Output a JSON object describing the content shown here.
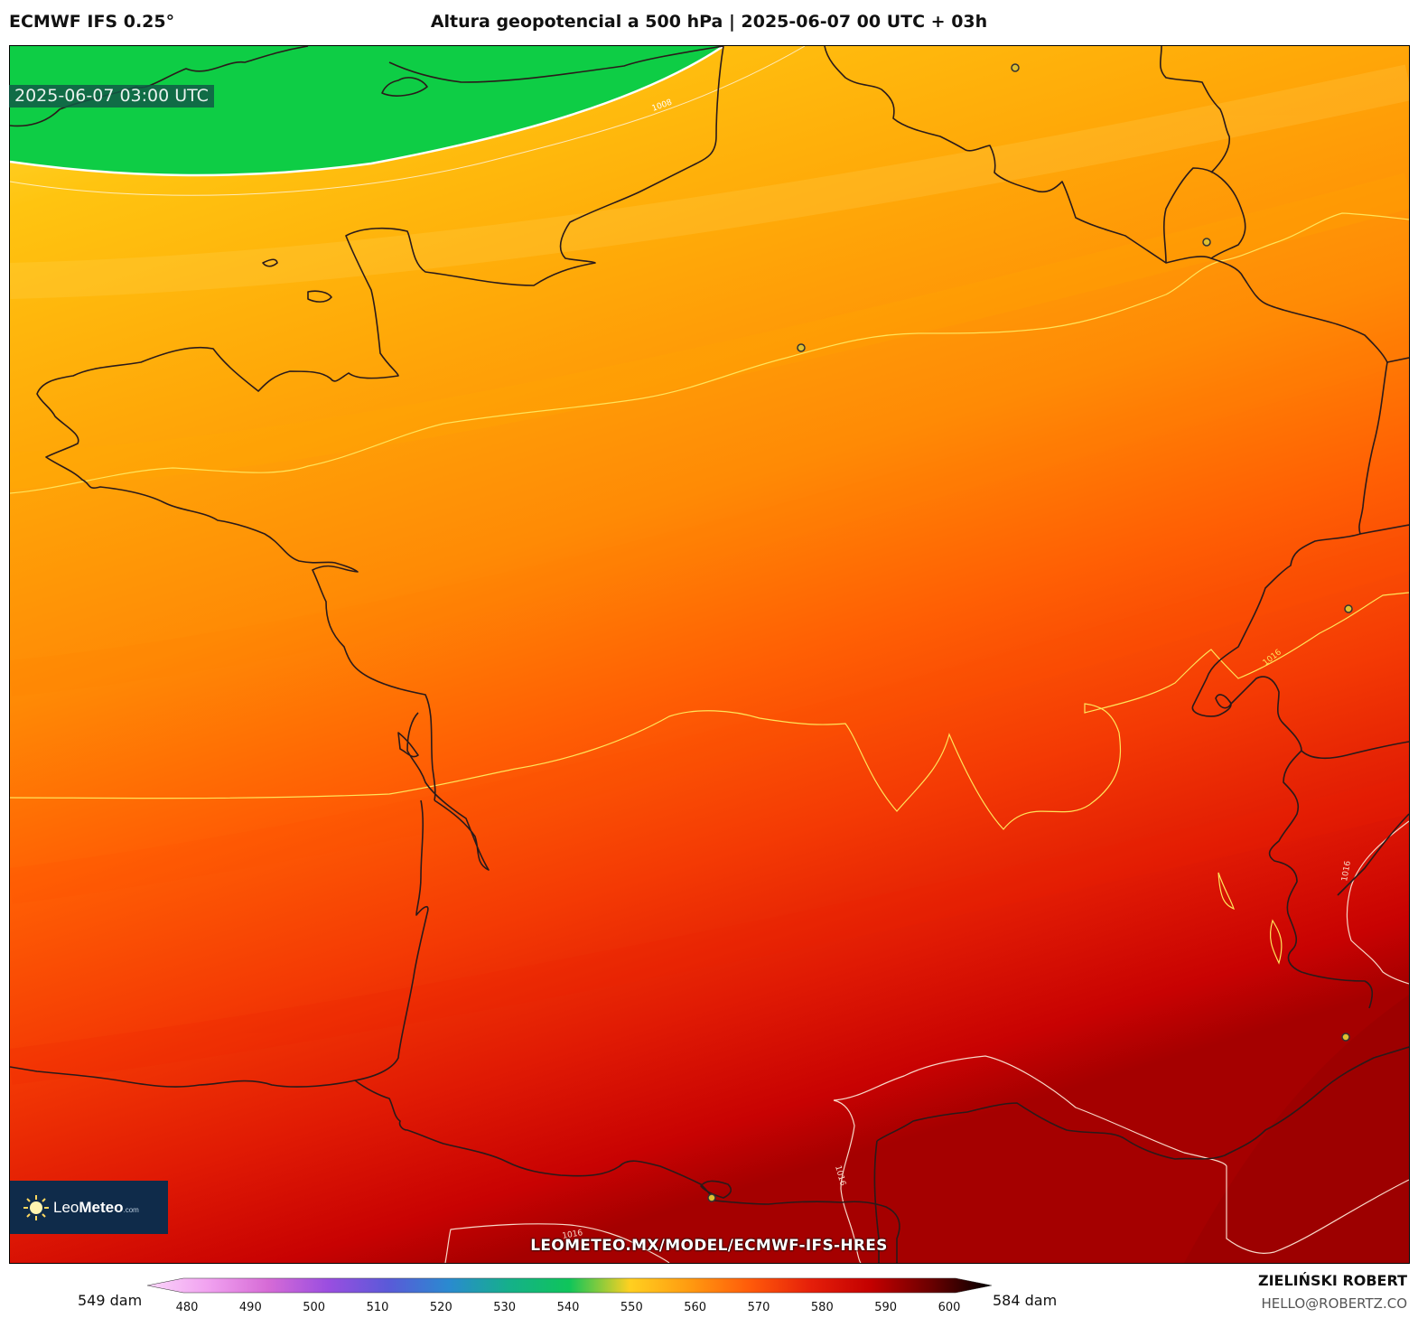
{
  "header": {
    "model": "ECMWF IFS 0.25°",
    "title": "Altura geopotencial a 500 hPa | 2025-06-07 00 UTC + 03h"
  },
  "map": {
    "valid_time": "2025-06-07 03:00 UTC",
    "isobar_labels": [
      "1008",
      "1016",
      "1016",
      "1016",
      "1016"
    ],
    "source_url": "LEOMETEO.MX/MODEL/ECMWF-IFS-HRES"
  },
  "logo": {
    "name_light": "Leo",
    "name_bold": "Meteo",
    "suffix": ".com"
  },
  "colorbar": {
    "min_label": "549 dam",
    "max_label": "584 dam",
    "ticks": [
      "480",
      "490",
      "500",
      "510",
      "520",
      "530",
      "540",
      "550",
      "560",
      "570",
      "580",
      "590",
      "600"
    ],
    "stops": [
      "#fbd6fb",
      "#f1a2f0",
      "#d66bd6",
      "#9a4ee0",
      "#5a5ad8",
      "#2a8ad0",
      "#15b08a",
      "#0fc55a",
      "#ffd020",
      "#ff9a10",
      "#ff5a0a",
      "#e51f0a",
      "#c30000",
      "#6a0000",
      "#000000"
    ]
  },
  "credits": {
    "author": "ZIELIŃSKI ROBERT",
    "email": "HELLO@ROBERTZ.CO"
  }
}
